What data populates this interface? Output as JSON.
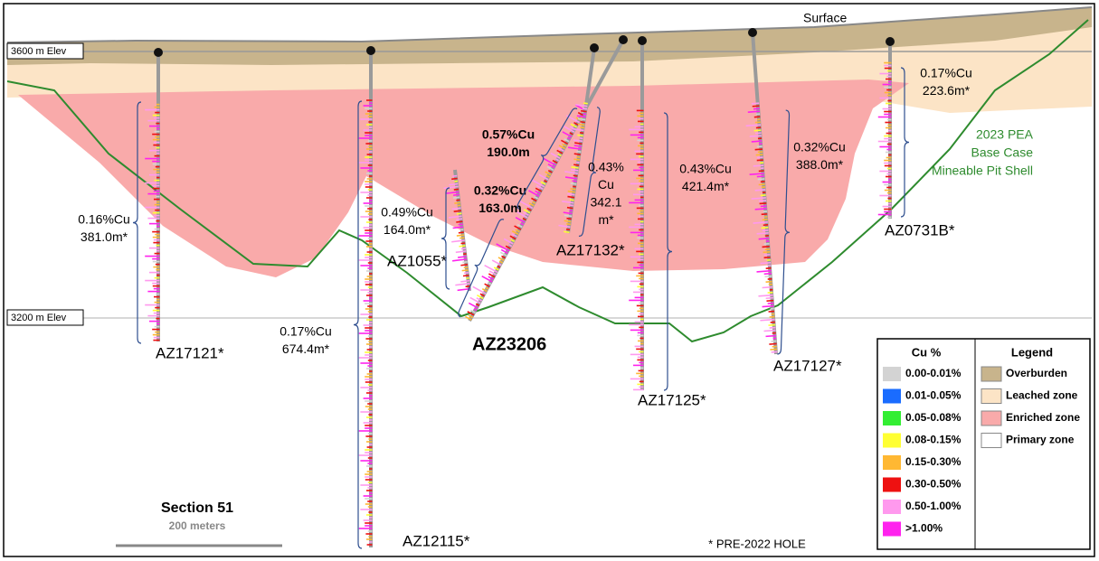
{
  "surface_label": "Surface",
  "elevation_labels": [
    "3600 m Elev",
    "3200 m Elev"
  ],
  "holes": [
    {
      "name": "AZ17121*",
      "bold": false
    },
    {
      "name": "AZ12115*",
      "bold": false
    },
    {
      "name": "AZ1055*",
      "bold": false
    },
    {
      "name": "AZ23206",
      "bold": true
    },
    {
      "name": "AZ17132*",
      "bold": false
    },
    {
      "name": "AZ17125*",
      "bold": false
    },
    {
      "name": "AZ17127*",
      "bold": false
    },
    {
      "name": "AZ0731B*",
      "bold": false
    }
  ],
  "intercepts": [
    {
      "lines": [
        "0.16%Cu",
        "381.0m*"
      ],
      "bold": false
    },
    {
      "lines": [
        "0.17%Cu",
        "674.4m*"
      ],
      "bold": false
    },
    {
      "lines": [
        "0.49%Cu",
        "164.0m*"
      ],
      "bold": false
    },
    {
      "lines": [
        "0.32%Cu",
        "163.0m"
      ],
      "bold": true
    },
    {
      "lines": [
        "0.57%Cu",
        "190.0m"
      ],
      "bold": true
    },
    {
      "lines": [
        "0.43%",
        "Cu",
        "342.1",
        "m*"
      ],
      "bold": false
    },
    {
      "lines": [
        "0.43%Cu",
        "421.4m*"
      ],
      "bold": false
    },
    {
      "lines": [
        "0.32%Cu",
        "388.0m*"
      ],
      "bold": false
    },
    {
      "lines": [
        "0.17%Cu",
        "223.6m*"
      ],
      "bold": false
    }
  ],
  "pit_shell_label": [
    "2023 PEA",
    "Base Case",
    "Mineable Pit Shell"
  ],
  "scale": {
    "section": "Section 51",
    "length": "200 meters"
  },
  "footnote": "* PRE-2022 HOLE",
  "cu_legend": {
    "title": "Cu %",
    "items": [
      {
        "label": "0.00-0.01%",
        "color": "#d3d3d3"
      },
      {
        "label": "0.01-0.05%",
        "color": "#1a6cff"
      },
      {
        "label": "0.05-0.08%",
        "color": "#33ee33"
      },
      {
        "label": "0.08-0.15%",
        "color": "#ffff33"
      },
      {
        "label": "0.15-0.30%",
        "color": "#ffb833"
      },
      {
        "label": "0.30-0.50%",
        "color": "#ee1111"
      },
      {
        "label": "0.50-1.00%",
        "color": "#ff99ee"
      },
      {
        "label": ">1.00%",
        "color": "#ff22ee"
      }
    ]
  },
  "zone_legend": {
    "title": "Legend",
    "items": [
      {
        "label": "Overburden",
        "color": "#c8b48c"
      },
      {
        "label": "Leached zone",
        "color": "#fce4c6"
      },
      {
        "label": "Enriched zone",
        "color": "#f9aaaa"
      },
      {
        "label": "Primary zone",
        "color": "#ffffff"
      }
    ]
  }
}
